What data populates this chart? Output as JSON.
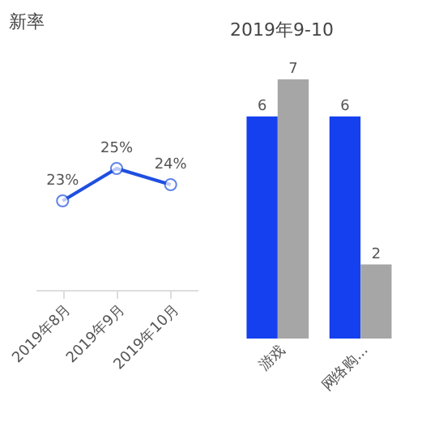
{
  "chart_data": [
    {
      "type": "line",
      "title": "新率",
      "categories": [
        "2019年8月",
        "2019年9月",
        "2019年10月"
      ],
      "values": [
        23,
        25,
        24
      ],
      "value_labels": [
        "23%",
        "25%",
        "24%"
      ],
      "color": "#1f4fe0",
      "marker": "circle",
      "grid": false
    },
    {
      "type": "bar",
      "title": "2019年9-10",
      "categories": [
        "游戏",
        "网络购..."
      ],
      "series": [
        {
          "color": "#1440f0",
          "values": [
            6,
            6
          ]
        },
        {
          "color": "#a6a6a6",
          "values": [
            7,
            2
          ]
        }
      ],
      "data_labels": true,
      "grid": false
    }
  ]
}
